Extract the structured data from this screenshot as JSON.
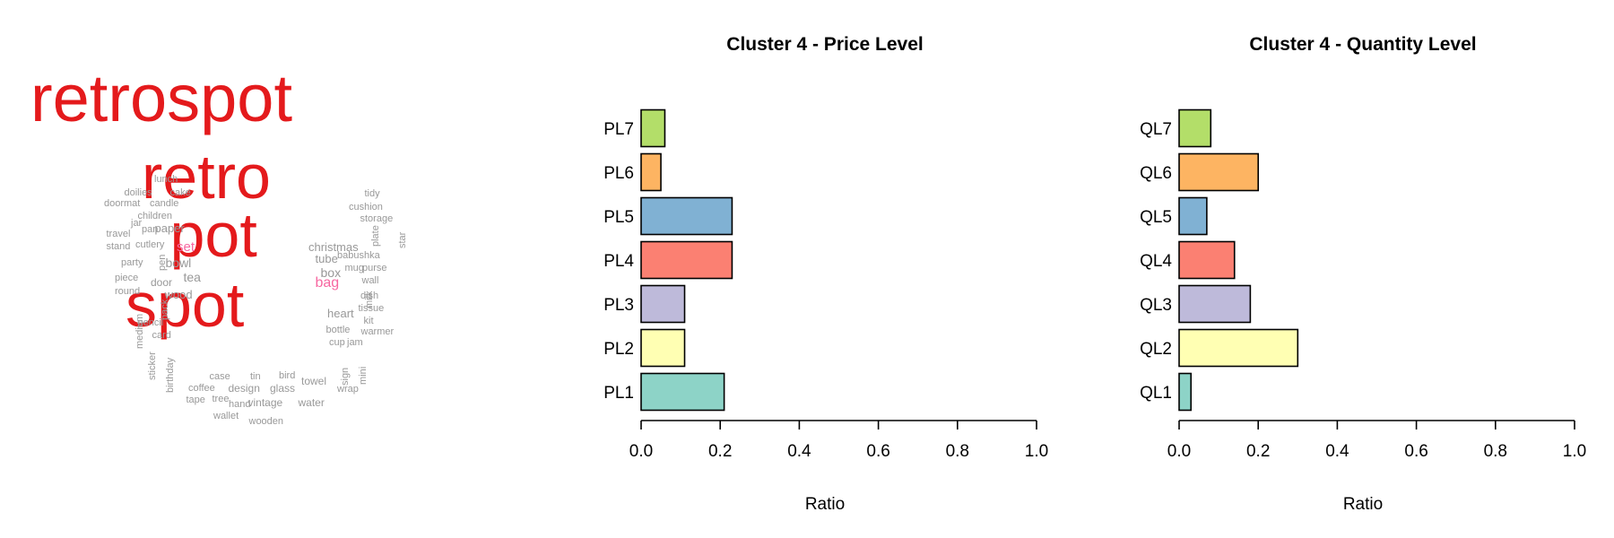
{
  "wordcloud": {
    "colors": {
      "large": "#e41a1c",
      "medium": "#f768a1",
      "small": "#999999"
    },
    "words": [
      {
        "text": "retrospot",
        "tier": "large"
      },
      {
        "text": "retro",
        "tier": "large"
      },
      {
        "text": "pot",
        "tier": "large"
      },
      {
        "text": "spot",
        "tier": "large"
      },
      {
        "text": "set",
        "tier": "medium"
      },
      {
        "text": "bag",
        "tier": "medium"
      },
      {
        "text": "lunch",
        "tier": "small"
      },
      {
        "text": "cake",
        "tier": "small"
      },
      {
        "text": "doilies",
        "tier": "small"
      },
      {
        "text": "doormat",
        "tier": "small"
      },
      {
        "text": "candle",
        "tier": "small"
      },
      {
        "text": "children",
        "tier": "small"
      },
      {
        "text": "jar",
        "tier": "small"
      },
      {
        "text": "pan",
        "tier": "small"
      },
      {
        "text": "paper",
        "tier": "small"
      },
      {
        "text": "travel",
        "tier": "small"
      },
      {
        "text": "stand",
        "tier": "small"
      },
      {
        "text": "cutlery",
        "tier": "small"
      },
      {
        "text": "pen",
        "tier": "small"
      },
      {
        "text": "bowl",
        "tier": "small"
      },
      {
        "text": "party",
        "tier": "small"
      },
      {
        "text": "piece",
        "tier": "small"
      },
      {
        "text": "door",
        "tier": "small"
      },
      {
        "text": "tea",
        "tier": "small"
      },
      {
        "text": "round",
        "tier": "small"
      },
      {
        "text": "pack",
        "tier": "small"
      },
      {
        "text": "wood",
        "tier": "small"
      },
      {
        "text": "medium",
        "tier": "small"
      },
      {
        "text": "pencil",
        "tier": "small"
      },
      {
        "text": "card",
        "tier": "small"
      },
      {
        "text": "sticker",
        "tier": "small"
      },
      {
        "text": "birthday",
        "tier": "small"
      },
      {
        "text": "case",
        "tier": "small"
      },
      {
        "text": "tin",
        "tier": "small"
      },
      {
        "text": "coffee",
        "tier": "small"
      },
      {
        "text": "design",
        "tier": "small"
      },
      {
        "text": "tape",
        "tier": "small"
      },
      {
        "text": "tree",
        "tier": "small"
      },
      {
        "text": "hand",
        "tier": "small"
      },
      {
        "text": "vintage",
        "tier": "small"
      },
      {
        "text": "wallet",
        "tier": "small"
      },
      {
        "text": "wooden",
        "tier": "small"
      },
      {
        "text": "bird",
        "tier": "small"
      },
      {
        "text": "glass",
        "tier": "small"
      },
      {
        "text": "towel",
        "tier": "small"
      },
      {
        "text": "water",
        "tier": "small"
      },
      {
        "text": "wrap",
        "tier": "small"
      },
      {
        "text": "tidy",
        "tier": "small"
      },
      {
        "text": "cushion",
        "tier": "small"
      },
      {
        "text": "storage",
        "tier": "small"
      },
      {
        "text": "plate",
        "tier": "small"
      },
      {
        "text": "star",
        "tier": "small"
      },
      {
        "text": "christmas",
        "tier": "small"
      },
      {
        "text": "tube",
        "tier": "small"
      },
      {
        "text": "babushka",
        "tier": "small"
      },
      {
        "text": "mug",
        "tier": "small"
      },
      {
        "text": "purse",
        "tier": "small"
      },
      {
        "text": "box",
        "tier": "small"
      },
      {
        "text": "wall",
        "tier": "small"
      },
      {
        "text": "milk",
        "tier": "small"
      },
      {
        "text": "dish",
        "tier": "small"
      },
      {
        "text": "tissue",
        "tier": "small"
      },
      {
        "text": "heart",
        "tier": "small"
      },
      {
        "text": "kit",
        "tier": "small"
      },
      {
        "text": "bottle",
        "tier": "small"
      },
      {
        "text": "warmer",
        "tier": "small"
      },
      {
        "text": "cup",
        "tier": "small"
      },
      {
        "text": "jam",
        "tier": "small"
      },
      {
        "text": "sign",
        "tier": "small"
      },
      {
        "text": "mini",
        "tier": "small"
      }
    ]
  },
  "chart_data": [
    {
      "type": "bar",
      "orientation": "horizontal",
      "title": "Cluster 4 - Price Level",
      "xlabel": "Ratio",
      "ylabel": "",
      "categories": [
        "PL1",
        "PL2",
        "PL3",
        "PL4",
        "PL5",
        "PL6",
        "PL7"
      ],
      "values": [
        0.21,
        0.11,
        0.11,
        0.23,
        0.23,
        0.05,
        0.06
      ],
      "colors": [
        "#8dd3c7",
        "#ffffb3",
        "#bebada",
        "#fb8072",
        "#80b1d3",
        "#fdb462",
        "#b3de69"
      ],
      "xlim": [
        0,
        1
      ],
      "ticks": [
        "0.0",
        "0.2",
        "0.4",
        "0.6",
        "0.8",
        "1.0"
      ],
      "grid": false
    },
    {
      "type": "bar",
      "orientation": "horizontal",
      "title": "Cluster 4 - Quantity Level",
      "xlabel": "Ratio",
      "ylabel": "",
      "categories": [
        "QL1",
        "QL2",
        "QL3",
        "QL4",
        "QL5",
        "QL6",
        "QL7"
      ],
      "values": [
        0.03,
        0.3,
        0.18,
        0.14,
        0.07,
        0.2,
        0.08
      ],
      "colors": [
        "#8dd3c7",
        "#ffffb3",
        "#bebada",
        "#fb8072",
        "#80b1d3",
        "#fdb462",
        "#b3de69"
      ],
      "xlim": [
        0,
        1
      ],
      "ticks": [
        "0.0",
        "0.2",
        "0.4",
        "0.6",
        "0.8",
        "1.0"
      ],
      "grid": false
    }
  ]
}
